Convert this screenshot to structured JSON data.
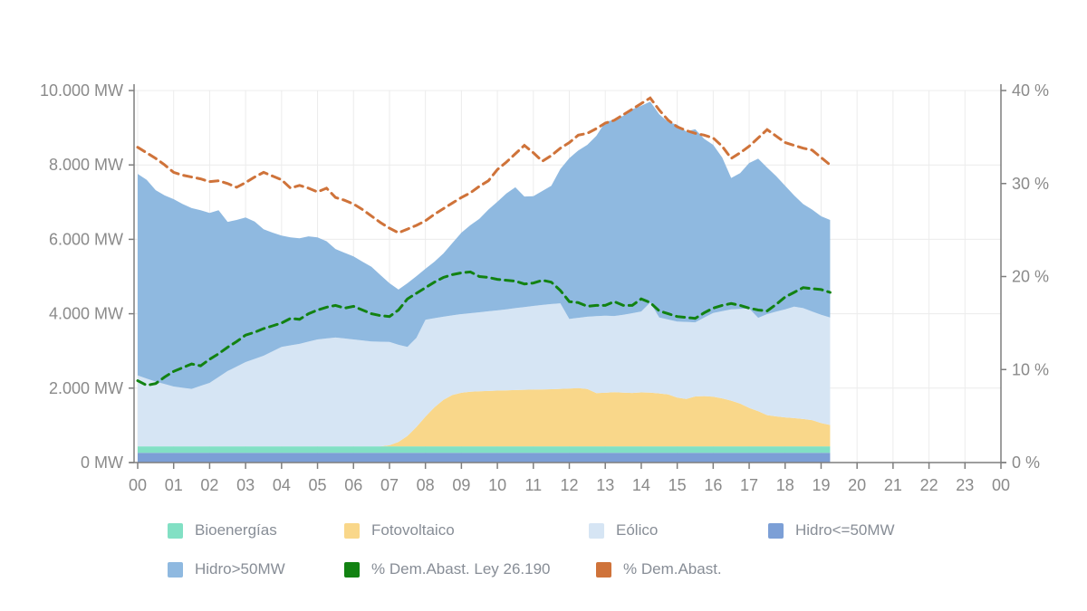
{
  "chart_data": {
    "type": "area",
    "title": "",
    "description": "Hourly stacked renewable generation (MW, left axis) with two dashed demand-share lines (%, right axis); data runs from hour 00 to ~19:15",
    "x_axis": {
      "tick_labels": [
        "00",
        "01",
        "02",
        "03",
        "04",
        "05",
        "06",
        "07",
        "08",
        "09",
        "10",
        "11",
        "12",
        "13",
        "14",
        "15",
        "16",
        "17",
        "18",
        "19",
        "20",
        "21",
        "22",
        "23",
        "00"
      ]
    },
    "y_left": {
      "tick_labels": [
        "0 MW",
        "2.000 MW",
        "4.000 MW",
        "6.000 MW",
        "8.000 MW",
        "10.000 MW"
      ],
      "tick_values": [
        0,
        2000,
        4000,
        6000,
        8000,
        10000
      ],
      "max": 10000
    },
    "y_right": {
      "tick_labels": [
        "0 %",
        "10 %",
        "20 %",
        "30 %",
        "40 %"
      ],
      "tick_values": [
        0,
        10,
        20,
        30,
        40
      ],
      "max": 40
    },
    "style": {
      "grid_color": "#ececec",
      "axis_color": "#7e7e7e",
      "tick_label_color": "#8a8a8a",
      "background": "#ffffff"
    },
    "x": [
      0,
      0.25,
      0.5,
      0.75,
      1,
      1.25,
      1.5,
      1.75,
      2,
      2.25,
      2.5,
      2.75,
      3,
      3.25,
      3.5,
      3.75,
      4,
      4.25,
      4.5,
      4.75,
      5,
      5.25,
      5.5,
      5.75,
      6,
      6.25,
      6.5,
      6.75,
      7,
      7.25,
      7.5,
      7.75,
      8,
      8.25,
      8.5,
      8.75,
      9,
      9.25,
      9.5,
      9.75,
      10,
      10.25,
      10.5,
      10.75,
      11,
      11.25,
      11.5,
      11.75,
      12,
      12.25,
      12.5,
      12.75,
      13,
      13.25,
      13.5,
      13.75,
      14,
      14.25,
      14.5,
      14.75,
      15,
      15.25,
      15.5,
      15.75,
      16,
      16.25,
      16.5,
      16.75,
      17,
      17.25,
      17.5,
      17.75,
      18,
      18.25,
      18.5,
      18.75,
      19,
      19.25
    ],
    "series": [
      {
        "name": "Hidro<=50MW",
        "color": "#7c9fd6",
        "value": 260
      },
      {
        "name": "Bioenergías",
        "color": "#82e0c4",
        "value": 175
      },
      {
        "name": "Fotovoltaico",
        "color": "#f9d78a",
        "values": [
          0,
          0,
          0,
          0,
          0,
          0,
          0,
          0,
          0,
          0,
          0,
          0,
          0,
          0,
          0,
          0,
          0,
          0,
          0,
          0,
          0,
          0,
          0,
          0,
          0,
          0,
          0,
          0,
          30,
          120,
          280,
          520,
          800,
          1050,
          1250,
          1380,
          1440,
          1470,
          1480,
          1490,
          1500,
          1505,
          1515,
          1520,
          1525,
          1530,
          1535,
          1545,
          1555,
          1565,
          1540,
          1430,
          1440,
          1455,
          1445,
          1435,
          1450,
          1445,
          1425,
          1395,
          1310,
          1275,
          1340,
          1350,
          1335,
          1290,
          1230,
          1150,
          1035,
          945,
          840,
          805,
          780,
          760,
          735,
          705,
          625,
          575
        ]
      },
      {
        "name": "Eólico",
        "color": "#d6e5f4",
        "values": [
          1905,
          1820,
          1740,
          1675,
          1610,
          1575,
          1545,
          1625,
          1705,
          1865,
          2025,
          2145,
          2265,
          2350,
          2435,
          2555,
          2675,
          2715,
          2755,
          2815,
          2875,
          2900,
          2925,
          2900,
          2875,
          2848,
          2820,
          2813,
          2775,
          2610,
          2395,
          2395,
          2605,
          2395,
          2235,
          2140,
          2115,
          2110,
          2125,
          2140,
          2155,
          2180,
          2200,
          2225,
          2250,
          2270,
          2290,
          2300,
          1870,
          1890,
          1945,
          2070,
          2075,
          2050,
          2090,
          2145,
          2175,
          2420,
          2040,
          2015,
          2045,
          2070,
          1995,
          2110,
          2250,
          2345,
          2455,
          2545,
          2670,
          2510,
          2715,
          2815,
          2905,
          2995,
          2980,
          2920,
          2910,
          2890
        ]
      },
      {
        "name": "Hidro>50MW",
        "color": "#8fb9e0",
        "values": [
          5420,
          5345,
          5145,
          5070,
          5035,
          4940,
          4860,
          4720,
          4570,
          4480,
          4010,
          3940,
          3890,
          3695,
          3400,
          3190,
          2990,
          2900,
          2840,
          2830,
          2740,
          2615,
          2380,
          2305,
          2230,
          2117,
          2005,
          1792,
          1580,
          1485,
          1710,
          1660,
          1370,
          1520,
          1700,
          1945,
          2190,
          2365,
          2510,
          2735,
          2920,
          3110,
          3250,
          2970,
          2950,
          3065,
          3180,
          3610,
          4320,
          4500,
          4620,
          4845,
          5200,
          5280,
          5350,
          5485,
          5530,
          5400,
          5460,
          5305,
          5290,
          5120,
          5190,
          4805,
          4520,
          4130,
          3530,
          3650,
          3910,
          4280,
          3940,
          3645,
          3320,
          2990,
          2800,
          2740,
          2650,
          2620
        ]
      }
    ],
    "lines": [
      {
        "name": "% Dem.Abast. Ley 26.190",
        "color": "#128212",
        "axis": "right",
        "values": [
          8.8,
          8.3,
          8.5,
          9.2,
          9.8,
          10.2,
          10.6,
          10.4,
          11.1,
          11.7,
          12.4,
          13,
          13.7,
          14,
          14.4,
          14.7,
          15,
          15.5,
          15.4,
          16,
          16.4,
          16.7,
          16.9,
          16.6,
          16.8,
          16.4,
          16,
          15.8,
          15.7,
          16.4,
          17.6,
          18.2,
          18.8,
          19.4,
          19.9,
          20.2,
          20.4,
          20.5,
          20,
          19.9,
          19.7,
          19.6,
          19.5,
          19.2,
          19.3,
          19.6,
          19.4,
          18.5,
          17.3,
          17.2,
          16.8,
          16.9,
          16.9,
          17.3,
          16.9,
          16.9,
          17.6,
          17.2,
          16.3,
          16,
          15.7,
          15.6,
          15.5,
          16.1,
          16.6,
          16.9,
          17.1,
          16.9,
          16.6,
          16.4,
          16.3,
          17,
          17.8,
          18.3,
          18.8,
          18.7,
          18.6,
          18.3
        ]
      },
      {
        "name": "% Dem.Abast.",
        "color": "#cf733a",
        "axis": "right",
        "values": [
          33.9,
          33.3,
          32.7,
          32,
          31.2,
          30.9,
          30.7,
          30.5,
          30.2,
          30.3,
          30,
          29.6,
          30.1,
          30.7,
          31.2,
          30.8,
          30.4,
          29.5,
          29.8,
          29.5,
          29.1,
          29.5,
          28.5,
          28.2,
          27.8,
          27.2,
          26.5,
          25.8,
          25.2,
          24.7,
          25.1,
          25.5,
          26,
          26.7,
          27.3,
          27.9,
          28.5,
          29,
          29.7,
          30.3,
          31.5,
          32.3,
          33.2,
          34.1,
          33.3,
          32.4,
          33,
          33.8,
          34.4,
          35.2,
          35.4,
          35.9,
          36.5,
          36.8,
          37.4,
          38,
          38.6,
          39.2,
          37.9,
          36.8,
          36.1,
          35.7,
          35.4,
          35.2,
          34.9,
          34,
          32.7,
          33.3,
          34,
          34.9,
          35.8,
          35.1,
          34.4,
          34.1,
          33.8,
          33.6,
          32.8,
          32
        ]
      }
    ],
    "legend": [
      {
        "label": "Bioenergías",
        "color": "#82e0c4"
      },
      {
        "label": "Fotovoltaico",
        "color": "#f9d78a"
      },
      {
        "label": "Eólico",
        "color": "#d6e5f4"
      },
      {
        "label": "Hidro<=50MW",
        "color": "#7c9fd6"
      },
      {
        "label": "Hidro>50MW",
        "color": "#8fb9e0"
      },
      {
        "label": "% Dem.Abast. Ley 26.190",
        "color": "#128212"
      },
      {
        "label": "% Dem.Abast.",
        "color": "#cf733a"
      }
    ]
  }
}
